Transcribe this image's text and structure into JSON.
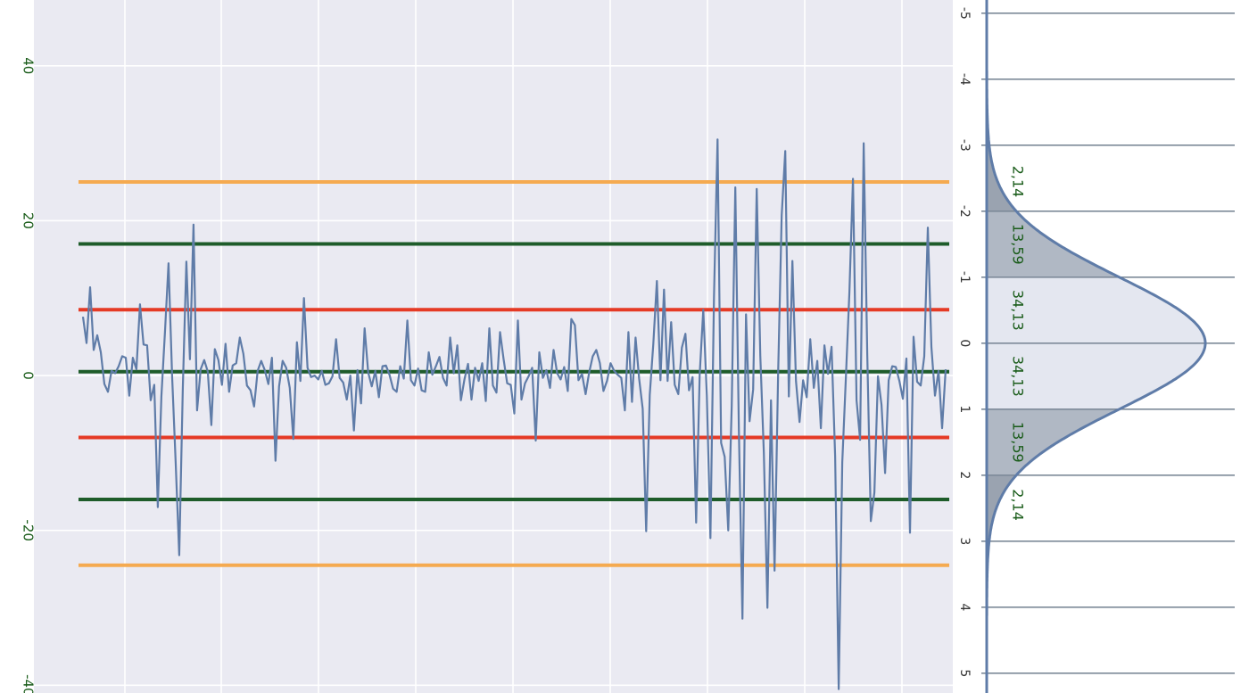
{
  "chart_data": [
    {
      "type": "line",
      "title": "",
      "xlabel": "",
      "ylabel": "",
      "ylim": [
        -41,
        48.5
      ],
      "yticks": [
        40,
        20,
        0,
        -20,
        -40
      ],
      "grid": true,
      "background": "#eaeaf2",
      "series": [
        {
          "color": "#5f7ca8",
          "values": [
            7.6,
            4.2,
            11.4,
            3.3,
            5.2,
            3.0,
            -1.1,
            -2.1,
            0.6,
            0.3,
            1.2,
            2.5,
            2.3,
            -2.6,
            2.3,
            0.8,
            9.2,
            4.0,
            3.9,
            -3.2,
            -1.2,
            -17.0,
            -2.7,
            5.6,
            14.5,
            0.0,
            -11.2,
            -23.2,
            -1.7,
            14.7,
            2.1,
            19.5,
            -4.5,
            0.8,
            2.0,
            0.5,
            -6.4,
            3.4,
            2.0,
            -1.2,
            4.1,
            -2.1,
            1.3,
            1.6,
            4.9,
            2.8,
            -1.3,
            -1.9,
            -4.0,
            0.6,
            1.9,
            0.7,
            -1.1,
            2.3,
            -11.0,
            -1.4,
            1.9,
            1.0,
            -1.6,
            -8.2,
            4.3,
            -0.7,
            10.0,
            1.0,
            -0.2,
            0.0,
            -0.5,
            0.6,
            -1.2,
            -1.0,
            -0.1,
            4.7,
            -0.3,
            -0.9,
            -3.1,
            0.0,
            -7.1,
            0.7,
            -3.6,
            6.1,
            0.4,
            -1.4,
            0.6,
            -2.8,
            1.2,
            1.3,
            0.1,
            -1.7,
            -2.1,
            1.2,
            -0.4,
            7.1,
            -0.6,
            -1.3,
            0.9,
            -1.9,
            -2.1,
            3.0,
            0.1,
            1.2,
            2.4,
            -0.3,
            -1.3,
            4.9,
            0.3,
            3.9,
            -3.2,
            -0.5,
            1.5,
            -3.1,
            1.0,
            -0.7,
            1.6,
            -3.3,
            6.1,
            -1.3,
            -2.2,
            5.6,
            2.1,
            -1.0,
            -1.2,
            -4.9,
            7.1,
            -3.1,
            -1.0,
            -0.1,
            1.0,
            -8.4,
            3.0,
            -0.3,
            0.7,
            -1.6,
            3.3,
            0.3,
            -0.5,
            1.1,
            -2.0,
            7.3,
            6.5,
            -0.6,
            0.2,
            -2.4,
            0.4,
            2.5,
            3.3,
            1.6,
            -2.0,
            -0.7,
            1.6,
            0.6,
            0.1,
            -0.3,
            -4.5,
            5.6,
            -3.4,
            4.9,
            -0.4,
            -4.3,
            -20.1,
            -2.5,
            4.1,
            12.2,
            -0.6,
            11.1,
            -0.7,
            6.9,
            -1.2,
            -2.4,
            3.6,
            5.4,
            -1.9,
            -0.2,
            -19.0,
            0.2,
            8.5,
            -2.6,
            -21.0,
            10.1,
            30.5,
            -8.7,
            -10.5,
            -20.0,
            -3.9,
            24.3,
            -7.0,
            -31.4,
            7.9,
            -5.9,
            -1.8,
            24.1,
            2.6,
            -10.0,
            -30.0,
            -3.2,
            -25.2,
            0.2,
            20.7,
            29.0,
            -2.7,
            14.8,
            -0.7,
            -6.0,
            -0.6,
            -2.8,
            4.7,
            -1.6,
            1.9,
            -6.8,
            3.9,
            0.2,
            3.7,
            -10.4,
            -40.5,
            -11.2,
            -0.4,
            10.8,
            25.4,
            -3.2,
            -8.3,
            30.0,
            2.8,
            -18.8,
            -15.1,
            -0.1,
            -3.8,
            -12.6,
            -0.6,
            1.2,
            1.1,
            -0.7,
            -3.0,
            2.2,
            -20.3,
            5.0,
            -0.8,
            -1.3,
            2.5,
            19.1,
            3.7,
            -2.6,
            0.6,
            -6.8,
            0.8
          ]
        }
      ],
      "reference_lines": [
        {
          "value": 25,
          "color": "#f5aa50"
        },
        {
          "value": 17,
          "color": "#1e5c2a"
        },
        {
          "value": 8.5,
          "color": "#e53a25"
        },
        {
          "value": 0.5,
          "color": "#1e5c2a"
        },
        {
          "value": -8,
          "color": "#e53a25"
        },
        {
          "value": -16,
          "color": "#1e5c2a"
        },
        {
          "value": -24.5,
          "color": "#f5aa50"
        }
      ]
    },
    {
      "type": "area",
      "title": "",
      "orientation": "vertical",
      "sigma_range": [
        -5.2,
        5.3
      ],
      "sigma_ticks": [
        "-5",
        "-4",
        "-3",
        "-2",
        "-1",
        "0",
        "1",
        "2",
        "3",
        "4",
        "5"
      ],
      "curve_color": "#5f7ca8",
      "bands": [
        {
          "from": -3,
          "to": -2,
          "percent": "2,14",
          "fill": "#9aa3b0"
        },
        {
          "from": -2,
          "to": -1,
          "percent": "13,59",
          "fill": "#b0b8c4"
        },
        {
          "from": -1,
          "to": 0,
          "percent": "34,13",
          "fill": "#e4e7f0"
        },
        {
          "from": 0,
          "to": 1,
          "percent": "34,13",
          "fill": "#e4e7f0"
        },
        {
          "from": 1,
          "to": 2,
          "percent": "13,59",
          "fill": "#b0b8c4"
        },
        {
          "from": 2,
          "to": 3,
          "percent": "2,14",
          "fill": "#9aa3b0"
        }
      ]
    }
  ]
}
